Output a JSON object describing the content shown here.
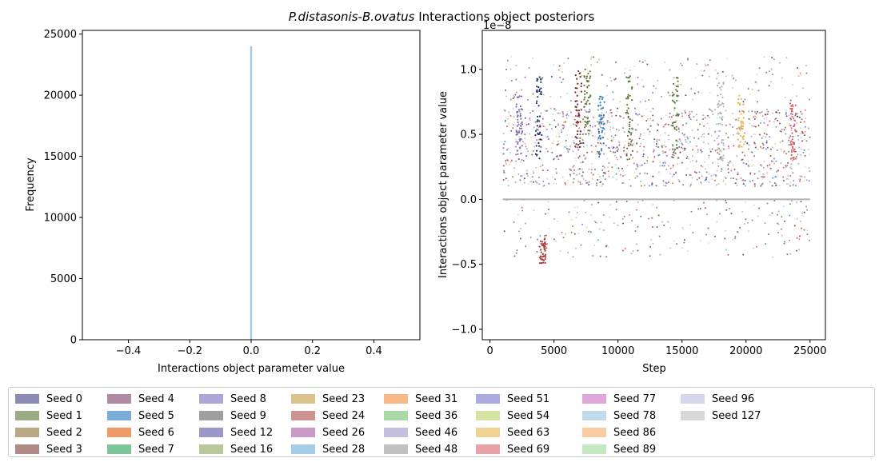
{
  "title_prefix_italic": "P.distasonis",
  "title_dash": "-",
  "title_species2_italic": "B.ovatus",
  "title_suffix": " Interactions object posteriors",
  "chart_data": [
    {
      "type": "bar",
      "subtype": "histogram",
      "xlabel": "Interactions object parameter value",
      "ylabel": "Frequency",
      "xlim": [
        -0.55,
        0.55
      ],
      "ylim": [
        0,
        25300
      ],
      "xticks": [
        "−0.4",
        "−0.2",
        "0.0",
        "0.2",
        "0.4"
      ],
      "xtick_values": [
        -0.4,
        -0.2,
        0.0,
        0.2,
        0.4
      ],
      "yticks": [
        "0",
        "5000",
        "10000",
        "15000",
        "20000",
        "25000"
      ],
      "ytick_values": [
        0,
        5000,
        10000,
        15000,
        20000,
        25000
      ],
      "bars": [
        {
          "x_from": -0.003,
          "x_to": 0.003,
          "value": 24000,
          "color": "#9ecae1"
        }
      ],
      "grid": false
    },
    {
      "type": "scatter",
      "xlabel": "Step",
      "ylabel": "Interactions object parameter value",
      "y_offset_label": "1e−8",
      "xlim": [
        -600,
        26200
      ],
      "ylim": [
        -1.08,
        1.3
      ],
      "y_unit_multiplier": 1e-08,
      "xticks": [
        "0",
        "5000",
        "10000",
        "15000",
        "20000",
        "25000"
      ],
      "xtick_values": [
        0,
        5000,
        10000,
        15000,
        20000,
        25000
      ],
      "yticks": [
        "−1.0",
        "−0.5",
        "0.0",
        "0.5",
        "1.0"
      ],
      "ytick_values": [
        -1.0,
        -0.5,
        0.0,
        0.5,
        1.0
      ],
      "reference_line": {
        "x_from": 1000,
        "x_to": 25000,
        "y": 0.0,
        "color": "#b0b0b0"
      },
      "dense_band": {
        "x_from": 1000,
        "x_to": 25000,
        "y_from": 0.0,
        "y_to": 0.8
      },
      "colored_streaks": [
        {
          "x": 2300,
          "y_from": 0.3,
          "y_to": 0.8,
          "color": "#7b6fb0"
        },
        {
          "x": 3800,
          "y_from": 0.3,
          "y_to": 0.95,
          "color": "#25306b"
        },
        {
          "x": 4100,
          "y_from": -0.5,
          "y_to": -0.3,
          "color": "#a83a3a"
        },
        {
          "x": 6900,
          "y_from": 0.4,
          "y_to": 1.0,
          "color": "#7a2a2a"
        },
        {
          "x": 7600,
          "y_from": 0.5,
          "y_to": 1.0,
          "color": "#637939"
        },
        {
          "x": 8700,
          "y_from": 0.3,
          "y_to": 0.8,
          "color": "#3182bd"
        },
        {
          "x": 10900,
          "y_from": 0.3,
          "y_to": 0.95,
          "color": "#637939"
        },
        {
          "x": 14500,
          "y_from": 0.3,
          "y_to": 0.95,
          "color": "#637939"
        },
        {
          "x": 18000,
          "y_from": 0.3,
          "y_to": 0.9,
          "color": "#b5b5b5"
        },
        {
          "x": 19600,
          "y_from": 0.4,
          "y_to": 0.8,
          "color": "#e7ba52"
        },
        {
          "x": 23700,
          "y_from": 0.3,
          "y_to": 0.75,
          "color": "#d6616b"
        }
      ]
    }
  ],
  "legend": [
    {
      "label": "Seed 0",
      "color": "#8a8cb3"
    },
    {
      "label": "Seed 1",
      "color": "#9aab86"
    },
    {
      "label": "Seed 2",
      "color": "#bba985"
    },
    {
      "label": "Seed 3",
      "color": "#b08a87"
    },
    {
      "label": "Seed 4",
      "color": "#b18ba6"
    },
    {
      "label": "Seed 5",
      "color": "#7cacd8"
    },
    {
      "label": "Seed 6",
      "color": "#ef9b68"
    },
    {
      "label": "Seed 7",
      "color": "#7ec59a"
    },
    {
      "label": "Seed 8",
      "color": "#ada6d6"
    },
    {
      "label": "Seed 9",
      "color": "#9f9f9f"
    },
    {
      "label": "Seed 12",
      "color": "#9a98c9"
    },
    {
      "label": "Seed 16",
      "color": "#b8c89a"
    },
    {
      "label": "Seed 23",
      "color": "#d9c38a"
    },
    {
      "label": "Seed 24",
      "color": "#cc9390"
    },
    {
      "label": "Seed 26",
      "color": "#c99bc6"
    },
    {
      "label": "Seed 28",
      "color": "#a6cde7"
    },
    {
      "label": "Seed 31",
      "color": "#fbb887"
    },
    {
      "label": "Seed 36",
      "color": "#acd9a8"
    },
    {
      "label": "Seed 46",
      "color": "#c4c0e0"
    },
    {
      "label": "Seed 48",
      "color": "#c1c1c1"
    },
    {
      "label": "Seed 51",
      "color": "#a9abe1"
    },
    {
      "label": "Seed 54",
      "color": "#d3e3a2"
    },
    {
      "label": "Seed 63",
      "color": "#eed392"
    },
    {
      "label": "Seed 69",
      "color": "#e8a1a4"
    },
    {
      "label": "Seed 77",
      "color": "#dfa6d9"
    },
    {
      "label": "Seed 78",
      "color": "#c0dcea"
    },
    {
      "label": "Seed 86",
      "color": "#fbcba2"
    },
    {
      "label": "Seed 89",
      "color": "#c5e7c1"
    },
    {
      "label": "Seed 96",
      "color": "#d6d6ec"
    },
    {
      "label": "Seed 127",
      "color": "#d8d8d8"
    }
  ]
}
